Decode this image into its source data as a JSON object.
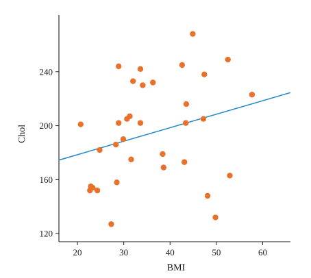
{
  "chart_data": {
    "type": "scatter",
    "title": "",
    "xlabel": "BMI",
    "ylabel": "Chol",
    "xlim": [
      16,
      66
    ],
    "ylim": [
      114,
      282
    ],
    "x_ticks": [
      20,
      30,
      40,
      50,
      60
    ],
    "y_ticks": [
      120,
      160,
      200,
      240
    ],
    "grid": false,
    "legend": "none",
    "colors": {
      "points": "#E8722C",
      "fit_line": "#2A8BC8",
      "axes": "#1a1a1a"
    },
    "series": [
      {
        "points": [
          {
            "x": 20.7,
            "y": 201
          },
          {
            "x": 22.7,
            "y": 152
          },
          {
            "x": 22.9,
            "y": 155
          },
          {
            "x": 23.3,
            "y": 154
          },
          {
            "x": 24.3,
            "y": 152
          },
          {
            "x": 24.8,
            "y": 182
          },
          {
            "x": 27.3,
            "y": 127
          },
          {
            "x": 28.3,
            "y": 186
          },
          {
            "x": 28.5,
            "y": 158
          },
          {
            "x": 28.9,
            "y": 244
          },
          {
            "x": 28.9,
            "y": 202
          },
          {
            "x": 29.9,
            "y": 190
          },
          {
            "x": 30.7,
            "y": 205
          },
          {
            "x": 31.3,
            "y": 207
          },
          {
            "x": 31.6,
            "y": 175
          },
          {
            "x": 32.0,
            "y": 233
          },
          {
            "x": 33.6,
            "y": 242
          },
          {
            "x": 33.6,
            "y": 202
          },
          {
            "x": 34.1,
            "y": 230
          },
          {
            "x": 36.3,
            "y": 232
          },
          {
            "x": 38.4,
            "y": 179
          },
          {
            "x": 38.6,
            "y": 169
          },
          {
            "x": 42.6,
            "y": 245
          },
          {
            "x": 43.1,
            "y": 173
          },
          {
            "x": 43.5,
            "y": 216
          },
          {
            "x": 43.4,
            "y": 202
          },
          {
            "x": 44.9,
            "y": 268
          },
          {
            "x": 47.2,
            "y": 205
          },
          {
            "x": 47.4,
            "y": 238
          },
          {
            "x": 48.1,
            "y": 148
          },
          {
            "x": 49.8,
            "y": 132
          },
          {
            "x": 52.5,
            "y": 249
          },
          {
            "x": 52.9,
            "y": 163
          },
          {
            "x": 57.7,
            "y": 223
          }
        ]
      }
    ],
    "fit_line": {
      "x": [
        16,
        66
      ],
      "y": [
        174.5,
        224.5
      ]
    }
  }
}
